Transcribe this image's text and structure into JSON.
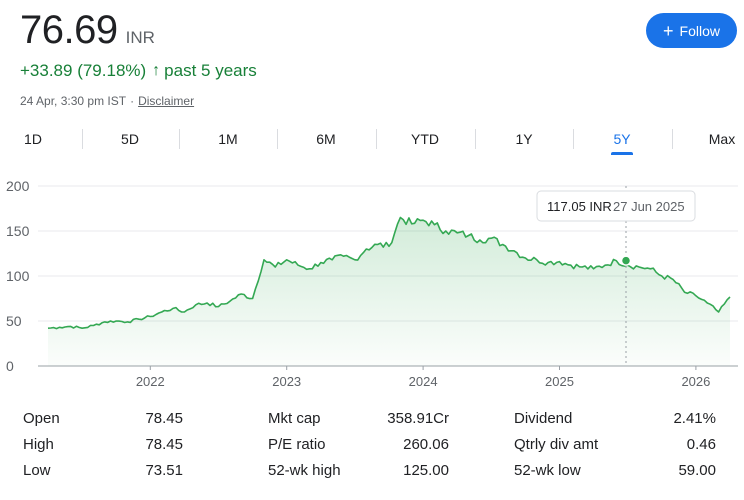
{
  "quote": {
    "price": "76.69",
    "currency": "INR",
    "change": "+33.89 (79.18%)",
    "arrow": "↑",
    "period": "past 5 years",
    "timestamp": "24 Apr, 3:30 pm IST",
    "separator": "·",
    "disclaimer": "Disclaimer",
    "positive_color": "#188038"
  },
  "follow": {
    "label": "Follow",
    "icon": "plus-icon",
    "color": "#1a73e8"
  },
  "tabs": [
    {
      "label": "1D",
      "active": false
    },
    {
      "label": "5D",
      "active": false
    },
    {
      "label": "1M",
      "active": false
    },
    {
      "label": "6M",
      "active": false
    },
    {
      "label": "YTD",
      "active": false
    },
    {
      "label": "1Y",
      "active": false
    },
    {
      "label": "5Y",
      "active": true
    },
    {
      "label": "Max",
      "active": false
    }
  ],
  "tooltip": {
    "value": "117.05 INR",
    "date": "27 Jun 2025"
  },
  "chart_data": {
    "type": "area",
    "title": "",
    "xlabel": "",
    "ylabel": "",
    "ylim": [
      0,
      200
    ],
    "yticks": [
      0,
      50,
      100,
      150,
      200
    ],
    "xticks": [
      "2022",
      "2023",
      "2024",
      "2025",
      "2026"
    ],
    "grid": true,
    "line_color": "#34a853",
    "x": [
      "2021-04",
      "2021-05",
      "2021-06",
      "2021-07",
      "2021-08",
      "2021-09",
      "2021-10",
      "2021-11",
      "2021-12",
      "2022-01",
      "2022-02",
      "2022-03",
      "2022-04",
      "2022-05",
      "2022-06",
      "2022-07",
      "2022-08",
      "2022-09",
      "2022-10",
      "2022-11",
      "2022-12",
      "2023-01",
      "2023-02",
      "2023-03",
      "2023-04",
      "2023-05",
      "2023-06",
      "2023-07",
      "2023-08",
      "2023-09",
      "2023-10",
      "2023-11",
      "2023-12",
      "2024-01",
      "2024-02",
      "2024-03",
      "2024-04",
      "2024-05",
      "2024-06",
      "2024-07",
      "2024-08",
      "2024-09",
      "2024-10",
      "2024-11",
      "2024-12",
      "2025-01",
      "2025-02",
      "2025-03",
      "2025-04",
      "2025-05",
      "2025-06",
      "2025-07",
      "2025-08",
      "2025-09",
      "2025-10",
      "2025-11",
      "2025-12",
      "2026-01",
      "2026-02",
      "2026-03",
      "2026-04"
    ],
    "values": [
      42,
      43,
      44,
      42,
      45,
      49,
      50,
      49,
      52,
      55,
      60,
      64,
      60,
      68,
      70,
      66,
      72,
      80,
      75,
      118,
      110,
      118,
      112,
      108,
      115,
      118,
      122,
      118,
      130,
      135,
      133,
      165,
      158,
      162,
      157,
      150,
      148,
      145,
      140,
      142,
      135,
      128,
      120,
      118,
      115,
      116,
      112,
      110,
      108,
      112,
      117,
      112,
      110,
      108,
      100,
      96,
      82,
      78,
      70,
      60,
      76.69
    ],
    "highlight": {
      "date": "27 Jun 2025",
      "value": 117.05
    }
  },
  "stats": [
    [
      {
        "label": "Open",
        "value": "78.45"
      },
      {
        "label": "High",
        "value": "78.45"
      },
      {
        "label": "Low",
        "value": "73.51"
      }
    ],
    [
      {
        "label": "Mkt cap",
        "value": "358.91Cr"
      },
      {
        "label": "P/E ratio",
        "value": "260.06"
      },
      {
        "label": "52-wk high",
        "value": "125.00"
      }
    ],
    [
      {
        "label": "Dividend",
        "value": "2.41%"
      },
      {
        "label": "Qtrly div amt",
        "value": "0.46"
      },
      {
        "label": "52-wk low",
        "value": "59.00"
      }
    ]
  ]
}
